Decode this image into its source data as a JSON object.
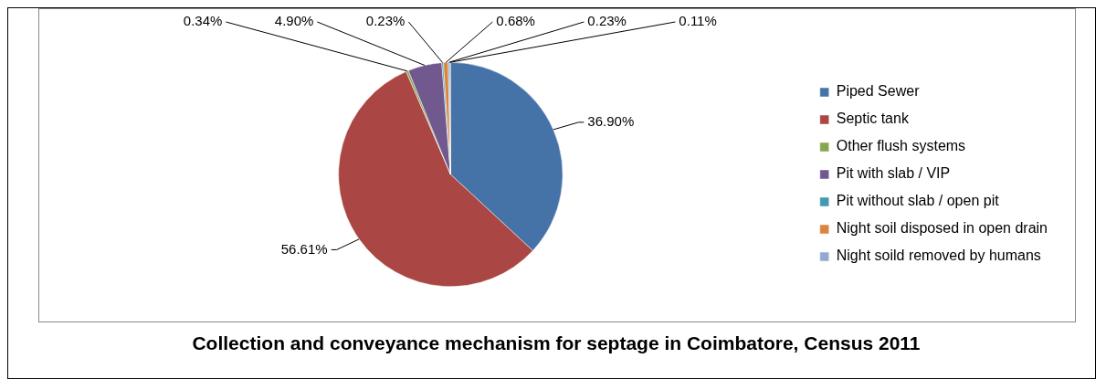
{
  "chart_data": {
    "type": "pie",
    "title": "Collection and conveyance mechanism for septage in Coimbatore, Census 2011",
    "categories": [
      "Piped Sewer",
      "Septic tank",
      "Other flush systems",
      "Pit with slab / VIP",
      "Pit without slab / open pit",
      "Night soil disposed in open drain",
      "Night soild removed by humans",
      null
    ],
    "values": [
      36.9,
      56.61,
      0.34,
      4.9,
      0.23,
      0.68,
      0.23,
      0.11
    ],
    "colors": [
      "#4572a7",
      "#aa4643",
      "#89a54e",
      "#71588f",
      "#4198af",
      "#db843d",
      "#93a9cf",
      "#2c4d75"
    ],
    "value_labels": [
      "36.90%",
      "56.61%",
      "0.34%",
      "4.90%",
      "0.23%",
      "0.68%",
      "0.23%",
      "0.11%"
    ],
    "legend": "right"
  }
}
